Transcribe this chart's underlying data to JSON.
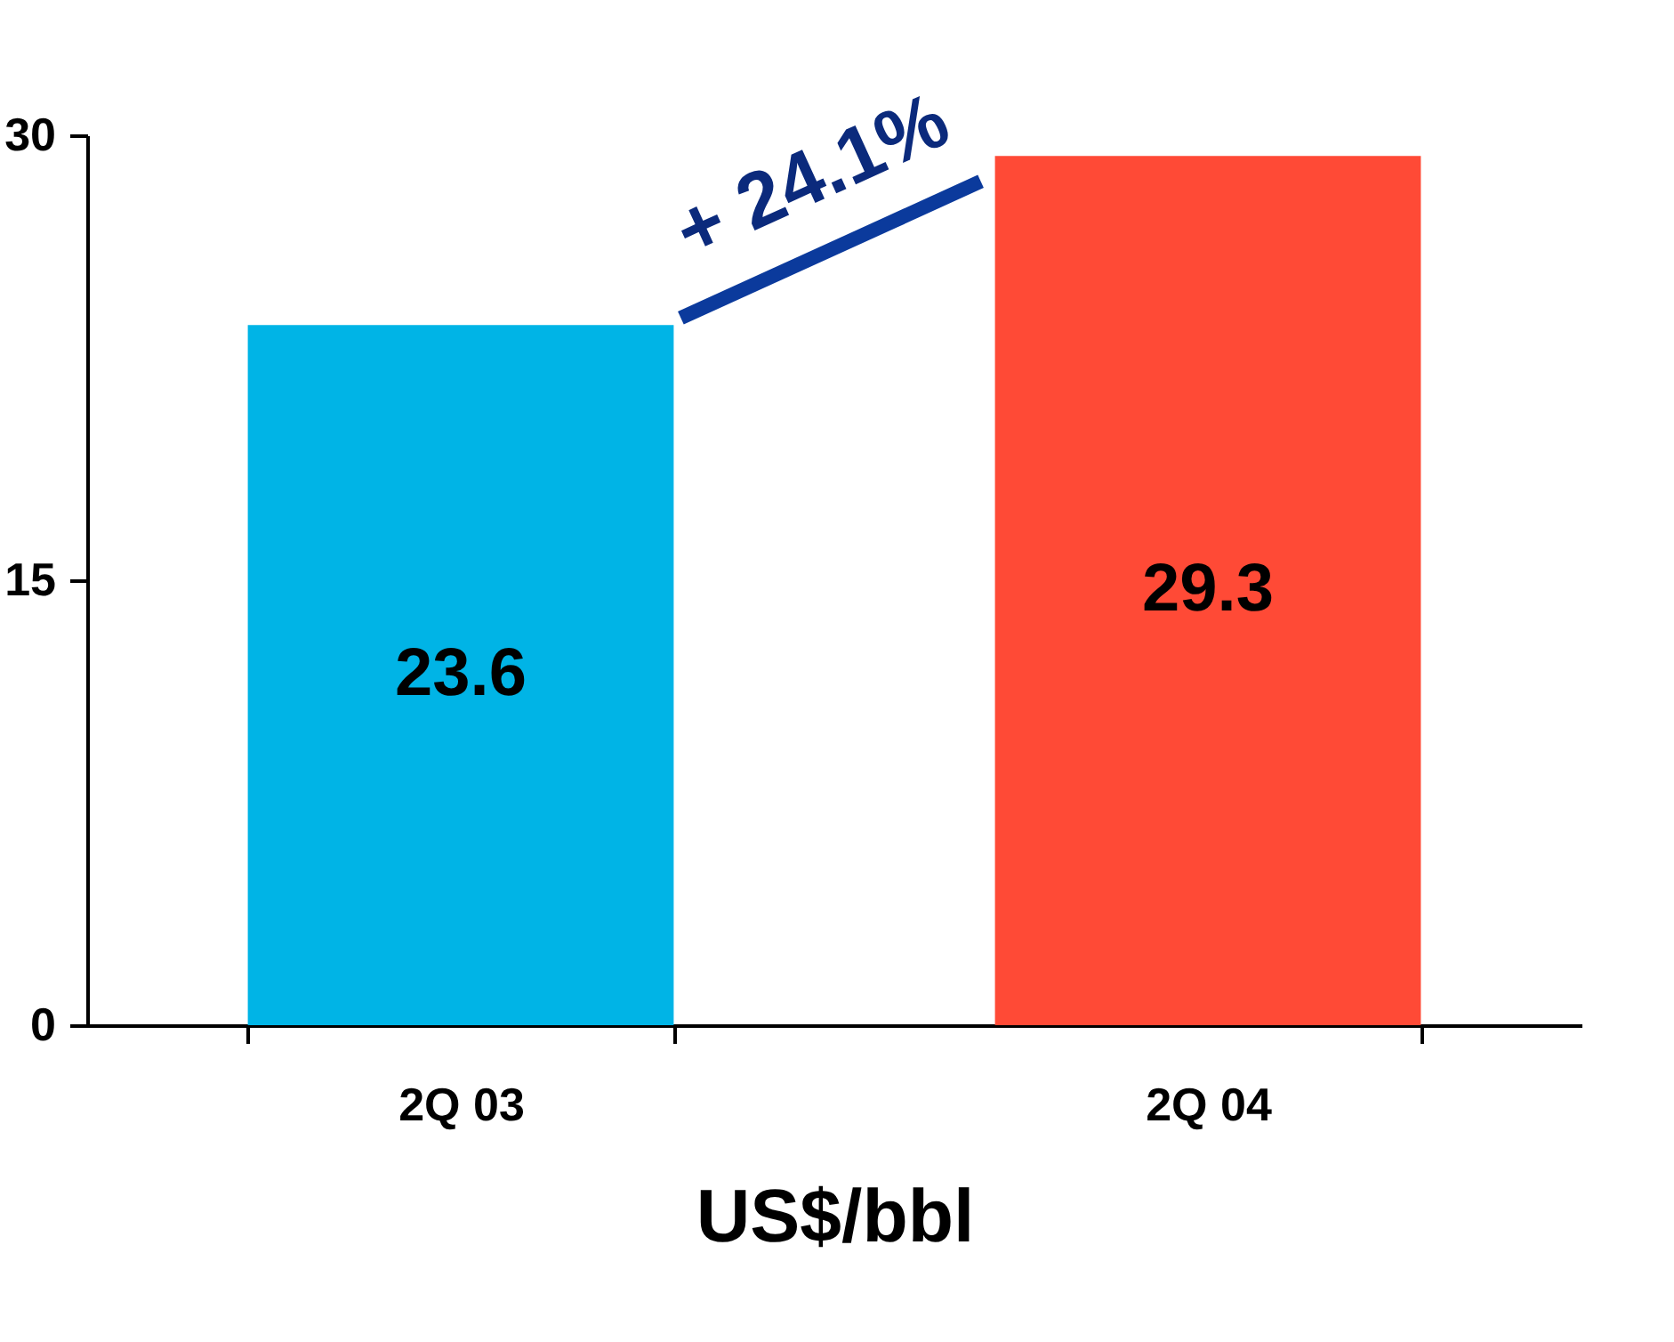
{
  "chart_data": {
    "type": "bar",
    "categories": [
      "2Q 03",
      "2Q 04"
    ],
    "values": [
      23.6,
      29.3
    ],
    "colors": [
      "#00b4e6",
      "#ff4a36"
    ],
    "xlabel": "US$/bbl",
    "ylim": [
      0,
      30
    ],
    "yticks": [
      0,
      15,
      30
    ],
    "grid": false,
    "data_labels": true,
    "annotations": [
      "+ 24.1%"
    ]
  }
}
